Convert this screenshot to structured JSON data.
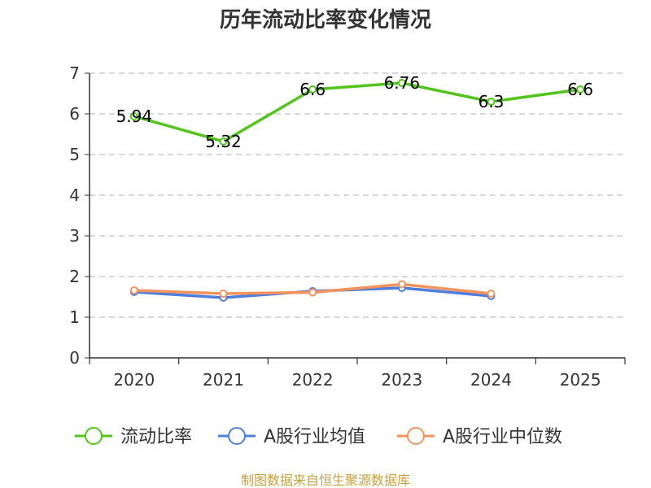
{
  "chart_data": {
    "type": "line",
    "title": "历年流动比率变化情况",
    "categories": [
      "2020",
      "2021",
      "2022",
      "2023",
      "2024",
      "2025"
    ],
    "y_ticks": [
      "0",
      "1",
      "2",
      "3",
      "4",
      "5",
      "6",
      "7"
    ],
    "ylim": [
      0,
      7
    ],
    "grid": true,
    "legend_position": "bottom",
    "series": [
      {
        "name": "流动比率",
        "color": "#52c41a",
        "values": [
          5.94,
          5.32,
          6.6,
          6.76,
          6.3,
          6.6
        ],
        "labels": [
          "5.94",
          "5.32",
          "6.6",
          "6.76",
          "6.3",
          "6.6"
        ]
      },
      {
        "name": "A股行业均值",
        "color": "#4f7fdc",
        "values": [
          1.62,
          1.48,
          1.64,
          1.72,
          1.52,
          null
        ]
      },
      {
        "name": "A股行业中位数",
        "color": "#f4935c",
        "values": [
          1.66,
          1.58,
          1.61,
          1.81,
          1.58,
          null
        ]
      }
    ],
    "source": "制图数据来自恒生聚源数据库"
  }
}
